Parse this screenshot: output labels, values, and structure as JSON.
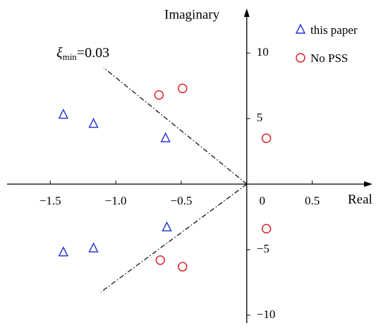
{
  "chart_data": {
    "type": "scatter",
    "x_label": "Real",
    "y_label": "Imaginary",
    "annotation": {
      "symbol": "ξ",
      "subscript": "min",
      "text": "=0.03"
    },
    "xlim": [
      -1.83,
      0.96
    ],
    "ylim": [
      -10.6,
      13.4
    ],
    "xticks": [
      {
        "value": -1.5,
        "label": "−1.5"
      },
      {
        "value": -1.0,
        "label": "−1.0"
      },
      {
        "value": -0.5,
        "label": "−0.5"
      },
      0,
      0.5
    ],
    "yticks": [
      10,
      5,
      {
        "value": -5,
        "label": "−5"
      },
      {
        "value": -10,
        "label": "−10"
      }
    ],
    "legend": "upper right",
    "series": [
      {
        "name": "this paper",
        "color": "#1f2fd0",
        "marker": "triangle",
        "x": [
          -1.4,
          -1.17,
          -0.62,
          -0.61,
          -1.17,
          -1.4
        ],
        "y": [
          5.3,
          4.6,
          3.5,
          -3.3,
          -4.9,
          -5.2
        ]
      },
      {
        "name": "No PSS",
        "color": "#e0141e",
        "marker": "circle",
        "x": [
          -0.67,
          -0.49,
          0.15,
          0.15,
          -0.66,
          -0.49
        ],
        "y": [
          6.8,
          7.3,
          3.5,
          -3.4,
          -5.8,
          -6.3
        ]
      }
    ]
  }
}
